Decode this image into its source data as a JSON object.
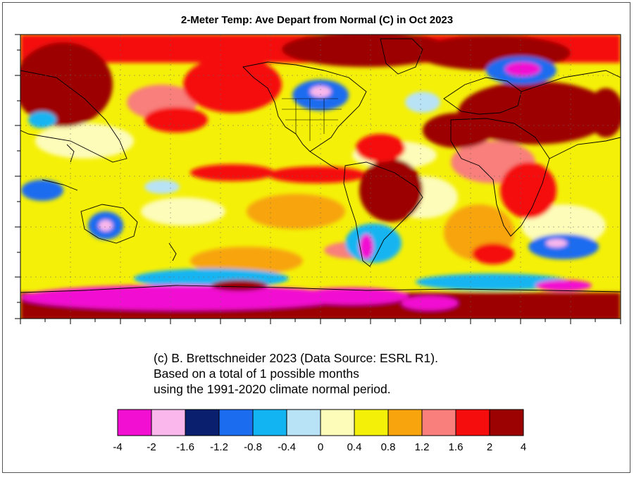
{
  "title": "2-Meter Temp:  Ave Depart from Normal (C) in Oct 2023",
  "credit": {
    "line1": "(c) B. Brettschneider 2023 (Data Source: ESRL R1).",
    "line2": "Based on a total of 1 possible months",
    "line3": "using the 1991-2020 climate normal period."
  },
  "colorbar": {
    "labels": [
      "-4",
      "-2",
      "-1.6",
      "-1.2",
      "-0.8",
      "-0.4",
      "0",
      "0.4",
      "0.8",
      "1.2",
      "1.6",
      "2",
      "4"
    ],
    "colors": [
      "#f20fd2",
      "#f9b7ec",
      "#0a1f6e",
      "#1c6cf0",
      "#12b5f2",
      "#b8e2f5",
      "#fdfcb8",
      "#f5f008",
      "#f7a40d",
      "#f87f7c",
      "#f50d0d",
      "#9c0202"
    ]
  },
  "icons": {
    "map": "world-map-anomaly"
  }
}
